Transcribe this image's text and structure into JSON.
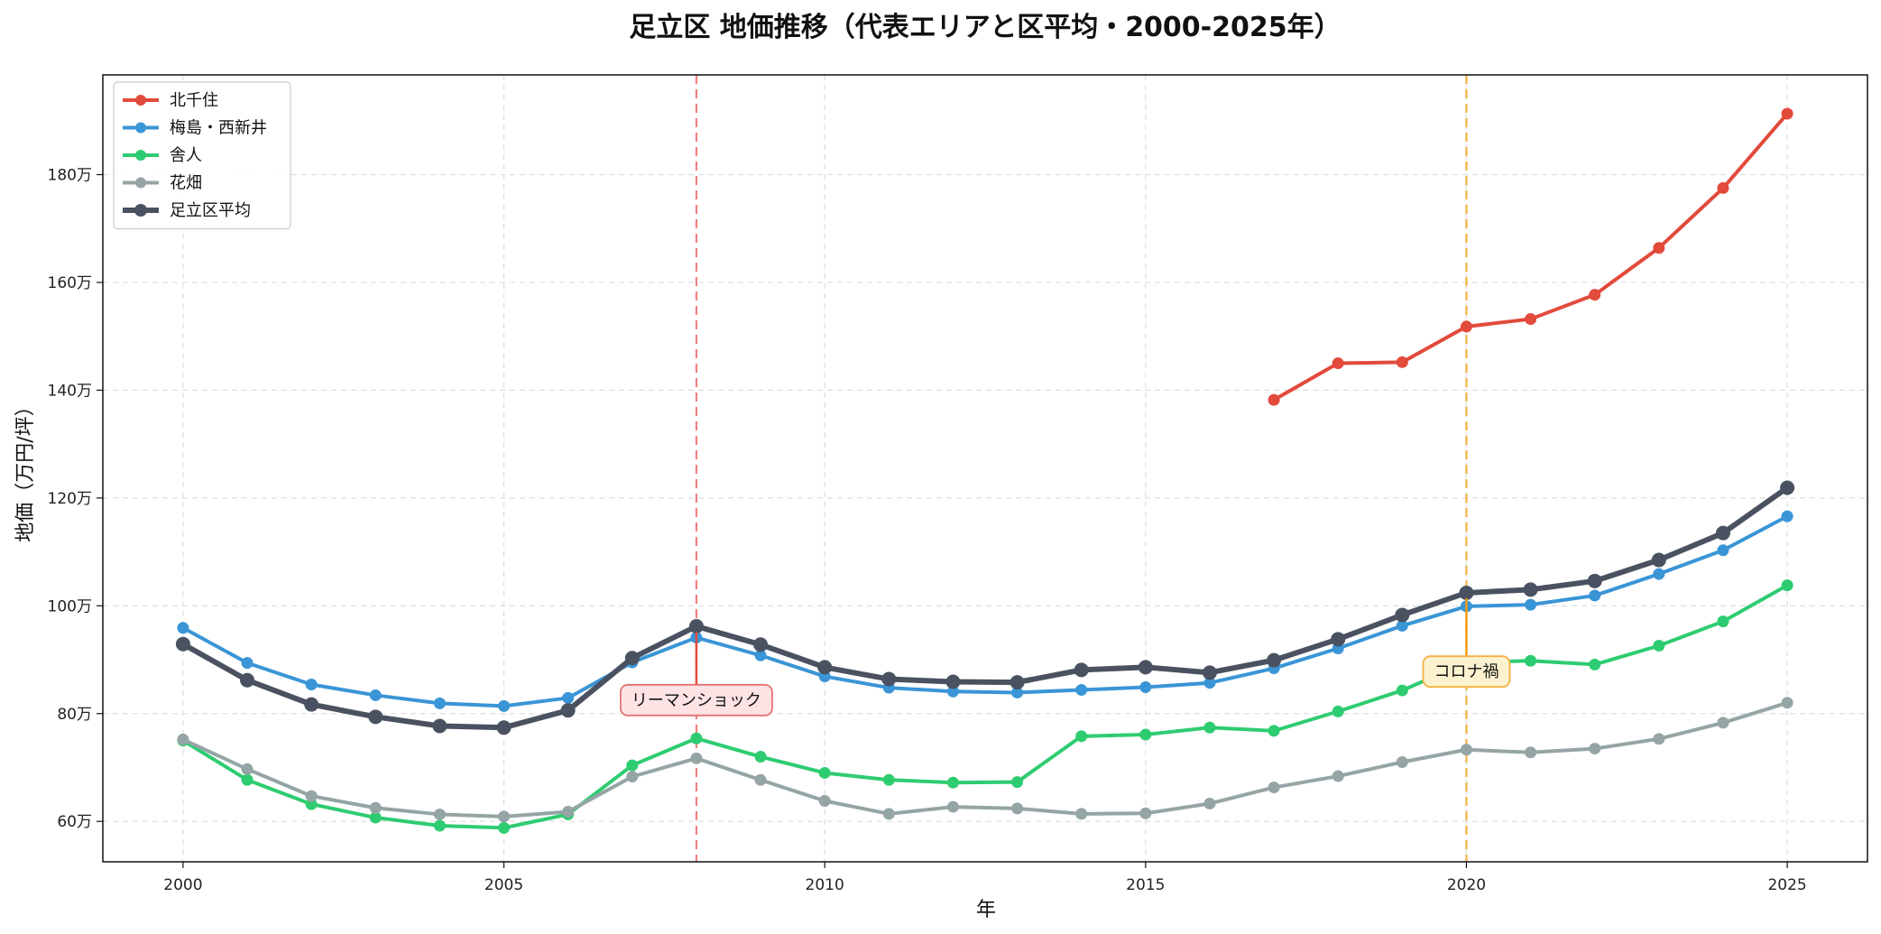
{
  "chart_data": {
    "type": "line",
    "title": "足立区 地価推移（代表エリアと区平均・2000-2025年）",
    "xlabel": "年",
    "ylabel": "地価（万円/坪）",
    "xlim": [
      1998.75,
      2026.25
    ],
    "ylim": [
      52.5,
      198.5
    ],
    "x_ticks": [
      2000,
      2005,
      2010,
      2015,
      2020,
      2025
    ],
    "y_ticks": [
      60,
      80,
      100,
      120,
      140,
      160,
      180
    ],
    "y_tick_suffix": "万",
    "grid": true,
    "legend_position": "top-left",
    "x": [
      2000,
      2001,
      2002,
      2003,
      2004,
      2005,
      2006,
      2007,
      2008,
      2009,
      2010,
      2011,
      2012,
      2013,
      2014,
      2015,
      2016,
      2017,
      2018,
      2019,
      2020,
      2021,
      2022,
      2023,
      2024,
      2025
    ],
    "series": [
      {
        "name": "北千住",
        "color": "#e24a3b",
        "values": [
          null,
          null,
          null,
          null,
          null,
          null,
          null,
          null,
          null,
          null,
          null,
          null,
          null,
          null,
          null,
          null,
          null,
          138.2,
          145.0,
          145.2,
          151.8,
          153.2,
          157.7,
          166.4,
          177.5,
          191.3
        ]
      },
      {
        "name": "梅島・西新井",
        "color": "#3a95d6",
        "values": [
          95.9,
          89.4,
          85.4,
          83.4,
          81.9,
          81.4,
          82.9,
          89.5,
          94.1,
          90.8,
          86.9,
          84.8,
          84.1,
          83.9,
          84.4,
          84.9,
          85.7,
          88.4,
          92.1,
          96.3,
          99.9,
          100.2,
          101.9,
          105.9,
          110.3,
          116.6
        ]
      },
      {
        "name": "舎人",
        "color": "#2ecc71",
        "values": [
          75.0,
          67.7,
          63.2,
          60.7,
          59.2,
          58.8,
          61.3,
          70.4,
          75.4,
          72.0,
          69.0,
          67.7,
          67.2,
          67.3,
          75.8,
          76.1,
          77.4,
          76.8,
          80.4,
          84.3,
          89.5,
          89.8,
          89.1,
          92.6,
          97.1,
          103.8
        ]
      },
      {
        "name": "花畑",
        "color": "#95a5a6",
        "values": [
          75.2,
          69.7,
          64.7,
          62.5,
          61.3,
          60.9,
          61.8,
          68.3,
          71.7,
          67.7,
          63.8,
          61.4,
          62.7,
          62.4,
          61.4,
          61.5,
          63.3,
          66.3,
          68.4,
          71.0,
          73.3,
          72.8,
          73.5,
          75.3,
          78.3,
          82.0
        ]
      },
      {
        "name": "足立区平均",
        "color": "#4a5261",
        "values": [
          92.9,
          86.2,
          81.7,
          79.4,
          77.7,
          77.4,
          80.6,
          90.3,
          96.2,
          92.8,
          88.6,
          86.4,
          85.9,
          85.8,
          88.1,
          88.6,
          87.6,
          89.9,
          93.8,
          98.3,
          102.4,
          103.0,
          104.6,
          108.5,
          113.5,
          121.9
        ]
      }
    ],
    "annotations": [
      {
        "text": "リーマンショック",
        "x": 2008,
        "line_color": "#f08080",
        "box_fill": "#fde3e3",
        "box_stroke": "#e57373",
        "arrow_color": "#e24a3b",
        "label_y": 82.5,
        "arrow_to_y": 96.2
      },
      {
        "text": "コロナ禍",
        "x": 2020,
        "line_color": "#f5b041",
        "box_fill": "#fdf2cf",
        "box_stroke": "#f5b041",
        "arrow_color": "#f39c12",
        "label_y": 87.8,
        "arrow_to_y": 102.4
      }
    ]
  }
}
